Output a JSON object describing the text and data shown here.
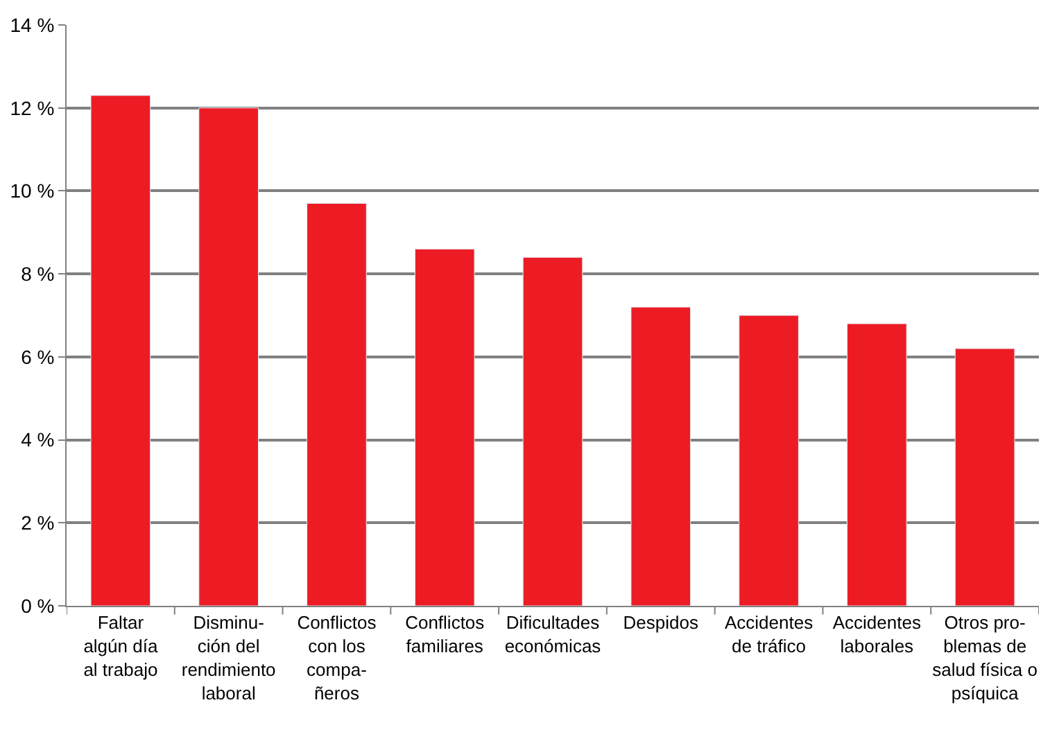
{
  "chart_data": {
    "type": "bar",
    "categories": [
      "Faltar\nalgún día\nal trabajo",
      "Disminu-\nción del\nrendimiento\nlaboral",
      "Conflictos\ncon los\ncompa-\nñeros",
      "Conflictos\nfamiliares",
      "Dificultades\neconómicas",
      "Despidos",
      "Accidentes\nde tráfico",
      "Accidentes\nlaborales",
      "Otros pro-\nblemas de\nsalud física o\npsíquica"
    ],
    "values": [
      12.3,
      12.0,
      9.7,
      8.6,
      8.4,
      7.2,
      7.0,
      6.8,
      6.2
    ],
    "color": "#ed1c24",
    "ylim": [
      0,
      14
    ],
    "yticks": [
      {
        "value": 0,
        "label": "0 %"
      },
      {
        "value": 2,
        "label": "2 %"
      },
      {
        "value": 4,
        "label": "4 %"
      },
      {
        "value": 6,
        "label": "6 %"
      },
      {
        "value": 8,
        "label": "8 %"
      },
      {
        "value": 10,
        "label": "10 %"
      },
      {
        "value": 12,
        "label": "12 %"
      },
      {
        "value": 14,
        "label": "14 %"
      }
    ],
    "grid": "y"
  }
}
